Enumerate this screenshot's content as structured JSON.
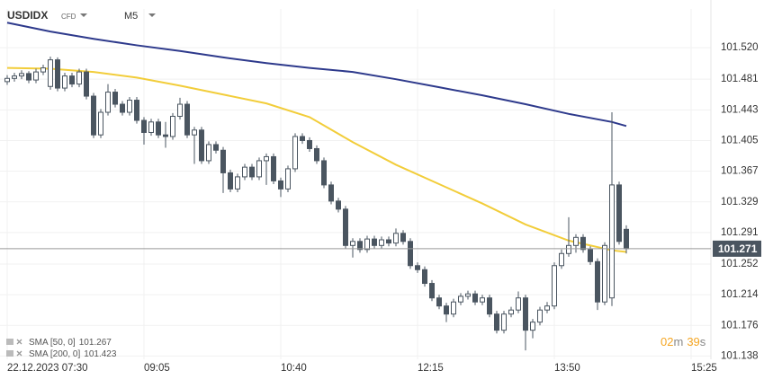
{
  "chart_data": {
    "type": "candlestick",
    "header": {
      "symbol": "USDIDX",
      "kind": "CFD",
      "timeframe": "M5"
    },
    "x": [
      "07:30",
      "07:35",
      "07:40",
      "07:45",
      "07:50",
      "07:55",
      "08:00",
      "08:05",
      "08:10",
      "08:15",
      "08:20",
      "08:25",
      "08:30",
      "08:35",
      "08:40",
      "08:45",
      "08:50",
      "08:55",
      "09:00",
      "09:05",
      "09:10",
      "09:15",
      "09:20",
      "09:25",
      "09:30",
      "09:35",
      "09:40",
      "09:45",
      "09:50",
      "09:55",
      "10:00",
      "10:05",
      "10:10",
      "10:15",
      "10:20",
      "10:25",
      "10:30",
      "10:35",
      "10:40",
      "10:45",
      "10:50",
      "10:55",
      "11:00",
      "11:05",
      "11:10",
      "11:15",
      "11:20",
      "11:25",
      "11:30",
      "11:35",
      "11:40",
      "11:45",
      "11:50",
      "11:55",
      "12:00",
      "12:05",
      "12:10",
      "12:15",
      "12:20",
      "12:25",
      "12:30",
      "12:35",
      "12:40",
      "12:45",
      "12:50",
      "12:55",
      "13:00",
      "13:05",
      "13:10",
      "13:15",
      "13:20",
      "13:25",
      "13:30",
      "13:35",
      "13:40",
      "13:45",
      "13:50",
      "13:55",
      "14:00",
      "14:05",
      "14:10",
      "14:15",
      "14:20",
      "14:25",
      "14:30",
      "14:35",
      "14:40"
    ],
    "candles": [
      [
        101.478,
        101.486,
        101.474,
        101.482
      ],
      [
        101.482,
        101.489,
        101.478,
        101.485
      ],
      [
        101.485,
        101.492,
        101.481,
        101.488
      ],
      [
        101.488,
        101.491,
        101.476,
        101.48
      ],
      [
        101.48,
        101.494,
        101.476,
        101.49
      ],
      [
        101.49,
        101.499,
        101.486,
        101.495
      ],
      [
        101.472,
        101.509,
        101.468,
        101.505
      ],
      [
        101.505,
        101.508,
        101.466,
        101.47
      ],
      [
        101.47,
        101.489,
        101.466,
        101.485
      ],
      [
        101.485,
        101.489,
        101.471,
        101.475
      ],
      [
        101.475,
        101.494,
        101.471,
        101.49
      ],
      [
        101.49,
        101.494,
        101.456,
        101.46
      ],
      [
        101.46,
        101.464,
        101.408,
        101.412
      ],
      [
        101.412,
        101.444,
        101.408,
        101.44
      ],
      [
        101.44,
        101.475,
        101.436,
        101.465
      ],
      [
        101.465,
        101.469,
        101.446,
        101.45
      ],
      [
        101.45,
        101.454,
        101.436,
        101.44
      ],
      [
        101.44,
        101.459,
        101.436,
        101.455
      ],
      [
        101.455,
        101.459,
        101.426,
        101.43
      ],
      [
        101.43,
        101.434,
        101.4,
        101.415
      ],
      [
        101.415,
        101.432,
        101.411,
        101.428
      ],
      [
        101.428,
        101.432,
        101.408,
        101.412
      ],
      [
        101.412,
        101.428,
        101.396,
        101.41
      ],
      [
        101.41,
        101.439,
        101.406,
        101.435
      ],
      [
        101.435,
        101.458,
        101.431,
        101.45
      ],
      [
        101.45,
        101.454,
        101.408,
        101.412
      ],
      [
        101.412,
        101.422,
        101.376,
        101.418
      ],
      [
        101.418,
        101.422,
        101.376,
        101.38
      ],
      [
        101.38,
        101.404,
        101.376,
        101.4
      ],
      [
        101.4,
        101.404,
        101.389,
        101.393
      ],
      [
        101.393,
        101.397,
        101.34,
        101.365
      ],
      [
        101.365,
        101.369,
        101.341,
        101.345
      ],
      [
        101.345,
        101.364,
        101.341,
        101.36
      ],
      [
        101.36,
        101.376,
        101.356,
        101.372
      ],
      [
        101.372,
        101.376,
        101.356,
        101.36
      ],
      [
        101.36,
        101.384,
        101.356,
        101.38
      ],
      [
        101.38,
        101.389,
        101.35,
        101.385
      ],
      [
        101.385,
        101.389,
        101.351,
        101.355
      ],
      [
        101.355,
        101.359,
        101.335,
        101.345
      ],
      [
        101.345,
        101.374,
        101.341,
        101.37
      ],
      [
        101.37,
        101.414,
        101.366,
        101.41
      ],
      [
        101.41,
        101.414,
        101.401,
        101.405
      ],
      [
        101.405,
        101.409,
        101.391,
        101.395
      ],
      [
        101.395,
        101.399,
        101.376,
        101.38
      ],
      [
        101.38,
        101.384,
        101.346,
        101.35
      ],
      [
        101.35,
        101.354,
        101.326,
        101.33
      ],
      [
        101.33,
        101.334,
        101.316,
        101.32
      ],
      [
        101.32,
        101.324,
        101.271,
        101.275
      ],
      [
        101.275,
        101.284,
        101.26,
        101.28
      ],
      [
        101.28,
        101.284,
        101.266,
        101.27
      ],
      [
        101.27,
        101.287,
        101.266,
        101.283
      ],
      [
        101.283,
        101.287,
        101.271,
        101.275
      ],
      [
        101.275,
        101.286,
        101.271,
        101.282
      ],
      [
        101.282,
        101.286,
        101.274,
        101.278
      ],
      [
        101.278,
        101.296,
        101.274,
        101.29
      ],
      [
        101.29,
        101.294,
        101.276,
        101.28
      ],
      [
        101.28,
        101.284,
        101.246,
        101.25
      ],
      [
        101.25,
        101.254,
        101.241,
        101.245
      ],
      [
        101.245,
        101.249,
        101.224,
        101.228
      ],
      [
        101.228,
        101.232,
        101.206,
        101.21
      ],
      [
        101.21,
        101.214,
        101.196,
        101.2
      ],
      [
        101.2,
        101.204,
        101.18,
        101.19
      ],
      [
        101.19,
        101.209,
        101.186,
        101.205
      ],
      [
        101.205,
        101.216,
        101.201,
        101.212
      ],
      [
        101.212,
        101.219,
        101.208,
        101.215
      ],
      [
        101.215,
        101.219,
        101.201,
        101.205
      ],
      [
        101.205,
        101.214,
        101.201,
        101.21
      ],
      [
        101.21,
        101.214,
        101.186,
        101.19
      ],
      [
        101.19,
        101.194,
        101.166,
        101.17
      ],
      [
        101.17,
        101.194,
        101.166,
        101.19
      ],
      [
        101.19,
        101.199,
        101.186,
        101.195
      ],
      [
        101.195,
        101.218,
        101.191,
        101.21
      ],
      [
        101.21,
        101.214,
        101.145,
        101.17
      ],
      [
        101.17,
        101.184,
        101.16,
        101.18
      ],
      [
        101.18,
        101.199,
        101.176,
        101.195
      ],
      [
        101.195,
        101.205,
        101.191,
        101.2
      ],
      [
        101.2,
        101.254,
        101.196,
        101.25
      ],
      [
        101.25,
        101.27,
        101.246,
        101.265
      ],
      [
        101.265,
        101.31,
        101.261,
        101.275
      ],
      [
        101.275,
        101.289,
        101.266,
        101.285
      ],
      [
        101.285,
        101.289,
        101.266,
        101.27
      ],
      [
        101.27,
        101.274,
        101.251,
        101.255
      ],
      [
        101.255,
        101.259,
        101.195,
        101.205
      ],
      [
        101.205,
        101.279,
        101.201,
        101.275
      ],
      [
        101.21,
        101.44,
        101.2,
        101.35
      ],
      [
        101.35,
        101.354,
        101.276,
        101.28
      ],
      [
        101.295,
        101.3,
        101.265,
        101.271
      ]
    ],
    "up_color": "#ffffff",
    "down_color": "#4a5560",
    "series": [
      {
        "name": "SMA [50, 0]",
        "color": "#f2cd3a",
        "x": [
          "07:30",
          "08:00",
          "08:30",
          "09:00",
          "09:30",
          "10:00",
          "10:30",
          "11:00",
          "11:30",
          "12:00",
          "12:30",
          "13:00",
          "13:30",
          "14:00",
          "14:30",
          "14:40"
        ],
        "values": [
          101.495,
          101.494,
          101.49,
          101.483,
          101.473,
          101.462,
          101.451,
          101.434,
          101.403,
          101.375,
          101.351,
          101.327,
          101.301,
          101.281,
          101.269,
          101.267
        ]
      },
      {
        "name": "SMA [200, 0]",
        "color": "#2e3a8c",
        "x": [
          "07:30",
          "08:00",
          "08:30",
          "09:00",
          "09:30",
          "10:00",
          "10:30",
          "11:00",
          "11:30",
          "12:00",
          "12:30",
          "13:00",
          "13:30",
          "14:00",
          "14:30",
          "14:40"
        ],
        "values": [
          101.551,
          101.54,
          101.531,
          101.523,
          101.516,
          101.508,
          101.501,
          101.495,
          101.49,
          101.481,
          101.471,
          101.461,
          101.45,
          101.438,
          101.428,
          101.423
        ]
      }
    ],
    "ylim": [
      101.134,
      101.568
    ],
    "yticks": [
      {
        "value": 101.52,
        "label": "101.520"
      },
      101.481,
      101.443,
      101.405,
      101.367,
      101.329,
      101.291,
      101.252,
      101.214,
      101.176,
      101.138
    ],
    "xticks": [
      {
        "value": "07:30",
        "label": "22.12.2023 07:30"
      },
      "09:05",
      "10:40",
      "12:15",
      "13:50",
      "15:25"
    ],
    "grid": true,
    "countdown": {
      "minutes": "02",
      "minutes_unit": "m",
      "seconds": "39",
      "seconds_unit": "s"
    }
  }
}
